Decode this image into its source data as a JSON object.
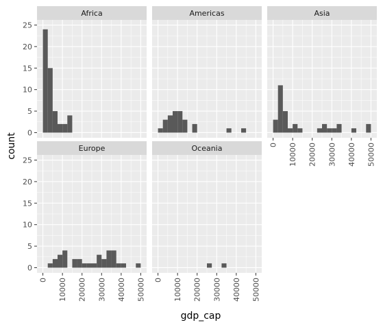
{
  "chart_data": {
    "type": "bar",
    "subtype": "faceted-histogram",
    "xlabel": "gdp_cap",
    "ylabel": "count",
    "xlim": [
      -3000,
      53000
    ],
    "ylim": [
      -1.2,
      26.2
    ],
    "x_ticks": [
      0,
      10000,
      20000,
      30000,
      40000,
      50000
    ],
    "x_tick_labels": [
      "0",
      "10000",
      "20000",
      "30000",
      "40000",
      "50000"
    ],
    "y_ticks": [
      0,
      5,
      10,
      15,
      20,
      25
    ],
    "y_tick_labels": [
      "0",
      "5",
      "10",
      "15",
      "20",
      "25"
    ],
    "bin_width": 2500,
    "grid": true,
    "colors": {
      "bar": "#595959",
      "panel_background": "#ebebeb",
      "grid_major": "#ffffff",
      "strip_background": "#d9d9d9"
    },
    "facets": [
      {
        "name": "Africa",
        "bins": [
          {
            "x0": 0,
            "count": 24
          },
          {
            "x0": 2500,
            "count": 15
          },
          {
            "x0": 5000,
            "count": 5
          },
          {
            "x0": 7500,
            "count": 2
          },
          {
            "x0": 10000,
            "count": 2
          },
          {
            "x0": 12500,
            "count": 4
          }
        ]
      },
      {
        "name": "Americas",
        "bins": [
          {
            "x0": 0,
            "count": 1
          },
          {
            "x0": 2500,
            "count": 3
          },
          {
            "x0": 5000,
            "count": 4
          },
          {
            "x0": 7500,
            "count": 5
          },
          {
            "x0": 10000,
            "count": 5
          },
          {
            "x0": 12500,
            "count": 3
          },
          {
            "x0": 17500,
            "count": 2
          },
          {
            "x0": 35000,
            "count": 1
          },
          {
            "x0": 42500,
            "count": 1
          }
        ]
      },
      {
        "name": "Asia",
        "bins": [
          {
            "x0": 0,
            "count": 3
          },
          {
            "x0": 2500,
            "count": 11
          },
          {
            "x0": 5000,
            "count": 5
          },
          {
            "x0": 7500,
            "count": 1
          },
          {
            "x0": 10000,
            "count": 2
          },
          {
            "x0": 12500,
            "count": 1
          },
          {
            "x0": 22500,
            "count": 1
          },
          {
            "x0": 25000,
            "count": 2
          },
          {
            "x0": 27500,
            "count": 1
          },
          {
            "x0": 30000,
            "count": 1
          },
          {
            "x0": 32500,
            "count": 2
          },
          {
            "x0": 40000,
            "count": 1
          },
          {
            "x0": 47500,
            "count": 2
          }
        ]
      },
      {
        "name": "Europe",
        "bins": [
          {
            "x0": 2500,
            "count": 1
          },
          {
            "x0": 5000,
            "count": 2
          },
          {
            "x0": 7500,
            "count": 3
          },
          {
            "x0": 10000,
            "count": 4
          },
          {
            "x0": 15000,
            "count": 2
          },
          {
            "x0": 17500,
            "count": 2
          },
          {
            "x0": 20000,
            "count": 1
          },
          {
            "x0": 22500,
            "count": 1
          },
          {
            "x0": 25000,
            "count": 1
          },
          {
            "x0": 27500,
            "count": 3
          },
          {
            "x0": 30000,
            "count": 2
          },
          {
            "x0": 32500,
            "count": 4
          },
          {
            "x0": 35000,
            "count": 4
          },
          {
            "x0": 37500,
            "count": 1
          },
          {
            "x0": 40000,
            "count": 1
          },
          {
            "x0": 47500,
            "count": 1
          }
        ]
      },
      {
        "name": "Oceania",
        "bins": [
          {
            "x0": 25000,
            "count": 1
          },
          {
            "x0": 32500,
            "count": 1
          }
        ]
      }
    ]
  }
}
